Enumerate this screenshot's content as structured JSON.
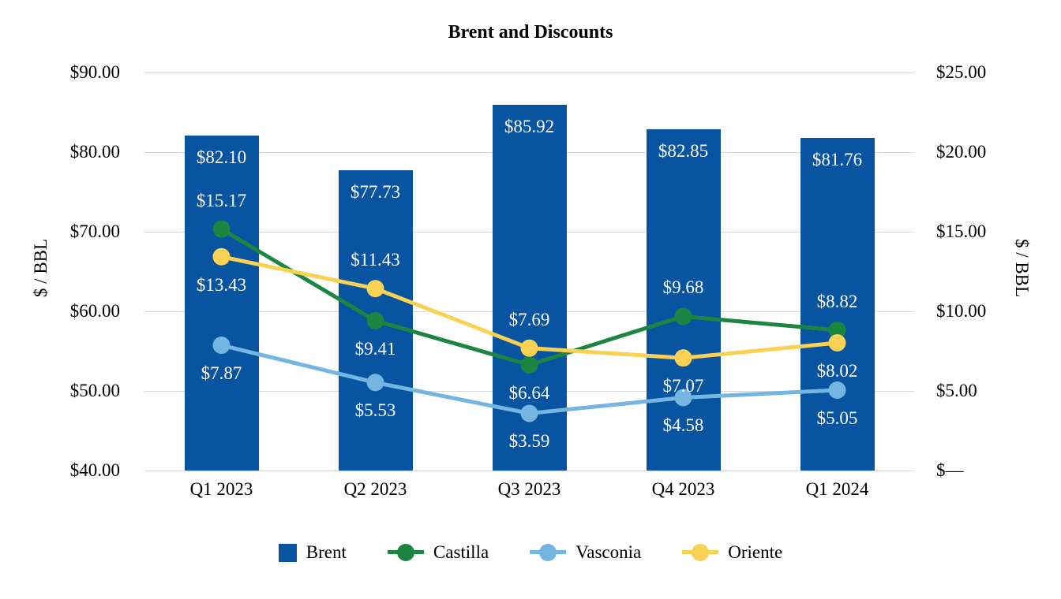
{
  "title": "Brent and Discounts",
  "left_axis": {
    "title": "$ / BBL",
    "ticks": [
      "$90.00",
      "$80.00",
      "$70.00",
      "$60.00",
      "$50.00",
      "$40.00"
    ]
  },
  "right_axis": {
    "title": "$ / BBL",
    "ticks": [
      "$25.00",
      "$20.00",
      "$15.00",
      "$10.00",
      "$5.00",
      "$—"
    ]
  },
  "chart_data": {
    "type": "combo-bar-line",
    "categories": [
      "Q1 2023",
      "Q2 2023",
      "Q3 2023",
      "Q4 2023",
      "Q1 2024"
    ],
    "left_range": [
      40,
      90
    ],
    "right_range": [
      0,
      25
    ],
    "grid": true,
    "legend_position": "bottom",
    "bar_series": {
      "name": "Brent",
      "axis": "left",
      "color": "#0854A0",
      "values": [
        82.1,
        77.73,
        85.92,
        82.85,
        81.76
      ],
      "labels": [
        "$82.10",
        "$77.73",
        "$85.92",
        "$82.85",
        "$81.76"
      ]
    },
    "line_series": [
      {
        "name": "Castilla",
        "axis": "right",
        "color": "#1D8542",
        "values": [
          15.17,
          9.41,
          6.64,
          9.68,
          8.82
        ],
        "labels": [
          "$15.17",
          "$9.41",
          "$6.64",
          "$9.68",
          "$8.82"
        ],
        "label_side": [
          "above",
          "below",
          "below",
          "above",
          "above"
        ]
      },
      {
        "name": "Vasconia",
        "axis": "right",
        "color": "#74B5E2",
        "values": [
          7.87,
          5.53,
          3.59,
          4.58,
          5.05
        ],
        "labels": [
          "$7.87",
          "$5.53",
          "$3.59",
          "$4.58",
          "$5.05"
        ],
        "label_side": [
          "below",
          "below",
          "below",
          "below",
          "below"
        ]
      },
      {
        "name": "Oriente",
        "axis": "right",
        "color": "#F8D155",
        "values": [
          13.43,
          11.43,
          7.69,
          7.07,
          8.02
        ],
        "labels": [
          "$13.43",
          "$11.43",
          "$7.69",
          "$7.07",
          "$8.02"
        ],
        "label_side": [
          "below",
          "above",
          "above",
          "below",
          "below"
        ]
      }
    ]
  },
  "legend": {
    "items": [
      {
        "label": "Brent",
        "type": "square",
        "color": "#0854A0"
      },
      {
        "label": "Castilla",
        "type": "line-marker",
        "color": "#1D8542"
      },
      {
        "label": "Vasconia",
        "type": "line-marker",
        "color": "#74B5E2"
      },
      {
        "label": "Oriente",
        "type": "line-marker",
        "color": "#F8D155"
      }
    ]
  },
  "colors": {
    "gridline": "#D9D9D9",
    "data_label_text": "#FFFFFF",
    "background": "#FFFFFF"
  }
}
